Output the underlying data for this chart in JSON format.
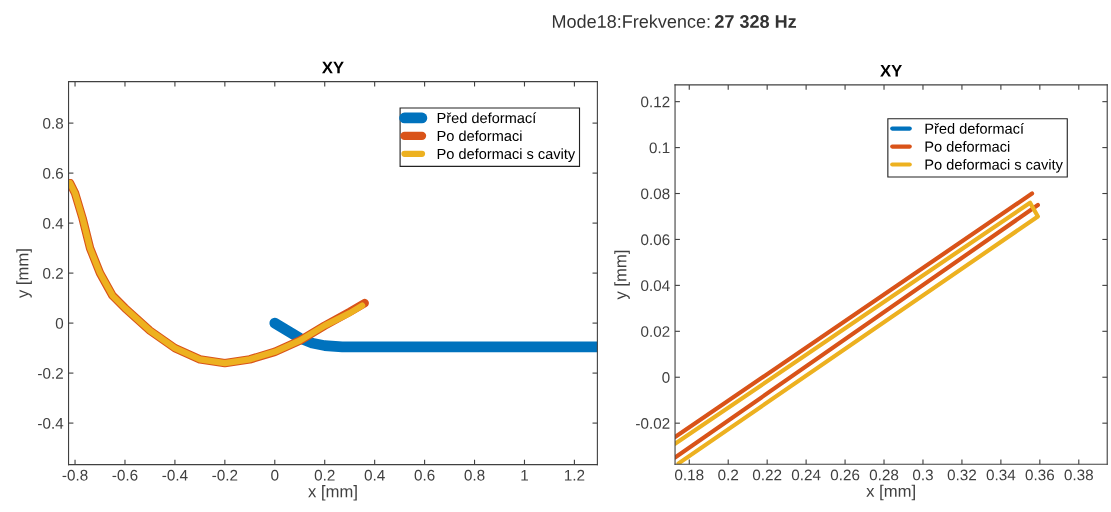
{
  "chart_data": [
    {
      "type": "line",
      "title": "XY",
      "xlabel": "x [mm]",
      "ylabel": "y [mm]",
      "annotations": [
        "Mode18:Frekvence:",
        "27 328 Hz"
      ],
      "xlim": [
        -0.826,
        1.292
      ],
      "ylim": [
        -0.566,
        0.966
      ],
      "xticks": [
        -0.8,
        -0.6,
        -0.4,
        -0.2,
        0,
        0.2,
        0.4,
        0.6,
        0.8,
        1,
        1.2
      ],
      "yticks": [
        -0.4,
        -0.2,
        0,
        0.2,
        0.4,
        0.6,
        0.8
      ],
      "legend": "top right",
      "grid": false,
      "line_style": "solid",
      "series": [
        {
          "name": "Před deformací",
          "color": "#0072bd",
          "x": [
            0,
            0.05,
            0.1,
            0.15,
            0.2,
            0.27,
            0.4,
            0.6,
            0.8,
            1.0,
            1.2,
            1.29
          ],
          "values": [
            0,
            -0.03,
            -0.06,
            -0.08,
            -0.09,
            -0.095,
            -0.095,
            -0.095,
            -0.095,
            -0.095,
            -0.095,
            -0.095
          ]
        },
        {
          "name": "Po deformaci",
          "color": "#d95319",
          "x": [
            -0.82,
            -0.8,
            -0.77,
            -0.74,
            -0.7,
            -0.65,
            -0.6,
            -0.5,
            -0.4,
            -0.3,
            -0.2,
            -0.1,
            0,
            0.1,
            0.2,
            0.3,
            0.36
          ],
          "values": [
            0.56,
            0.52,
            0.42,
            0.3,
            0.2,
            0.11,
            0.06,
            -0.03,
            -0.1,
            -0.145,
            -0.16,
            -0.145,
            -0.115,
            -0.07,
            -0.01,
            0.045,
            0.08
          ]
        },
        {
          "name": "Po deformaci s cavity",
          "color": "#edb120",
          "x": [
            -0.82,
            -0.8,
            -0.77,
            -0.74,
            -0.7,
            -0.65,
            -0.6,
            -0.5,
            -0.4,
            -0.3,
            -0.2,
            -0.1,
            0,
            0.1,
            0.2,
            0.3,
            0.35
          ],
          "values": [
            0.56,
            0.52,
            0.42,
            0.3,
            0.2,
            0.11,
            0.06,
            -0.03,
            -0.1,
            -0.145,
            -0.16,
            -0.145,
            -0.115,
            -0.07,
            -0.01,
            0.04,
            0.07
          ]
        }
      ]
    },
    {
      "type": "line",
      "title": "XY",
      "xlabel": "x [mm]",
      "ylabel": "y [mm]",
      "xlim": [
        0.1727,
        0.3946
      ],
      "ylim": [
        -0.0379,
        0.1273
      ],
      "xticks": [
        0.18,
        0.2,
        0.22,
        0.24,
        0.26,
        0.28,
        0.3,
        0.32,
        0.34,
        0.36,
        0.38
      ],
      "yticks": [
        -0.02,
        0,
        0.02,
        0.04,
        0.06,
        0.08,
        0.1,
        0.12
      ],
      "legend": "top",
      "grid": false,
      "line_style": "solid",
      "series": [
        {
          "name": "Před deformací",
          "color": "#0072bd"
        },
        {
          "name": "Po deformaci",
          "color": "#d95319",
          "x": [
            0.1727,
            0.356,
            null,
            0.1727,
            0.359
          ],
          "values": [
            -0.026,
            0.08,
            null,
            -0.035,
            0.075
          ]
        },
        {
          "name": "Po deformaci s cavity",
          "color": "#edb120",
          "x": [
            0.1727,
            0.355,
            0.359,
            0.1745
          ],
          "values": [
            -0.029,
            0.076,
            0.07,
            -0.0375
          ]
        }
      ]
    }
  ]
}
